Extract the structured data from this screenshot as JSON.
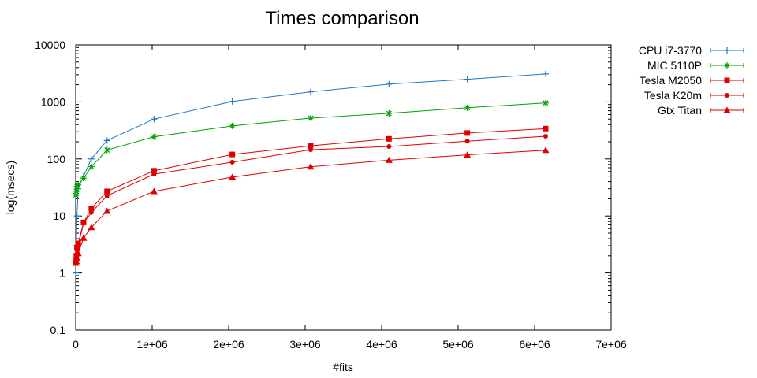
{
  "chart_data": {
    "type": "line",
    "title": "Times comparison",
    "xlabel": "#fits",
    "ylabel": "log(msecs)",
    "xlim": [
      0,
      7000000
    ],
    "ylim": [
      0.1,
      10000
    ],
    "yscale": "log",
    "grid": false,
    "legend_position": "top-right",
    "x_ticks": [
      "0",
      "1e+06",
      "2e+06",
      "3e+06",
      "4e+06",
      "5e+06",
      "6e+06",
      "7e+06"
    ],
    "y_ticks": [
      "0.1",
      "1",
      "10",
      "100",
      "1000",
      "10000"
    ],
    "x": [
      1,
      8192,
      16384,
      32768,
      102400,
      204800,
      409600,
      1024000,
      2048000,
      3072000,
      4096000,
      5120000,
      6144000
    ],
    "series": [
      {
        "name": "CPU i7-3770",
        "color": "#1f77c4",
        "marker": "plus",
        "values": [
          1,
          3,
          10,
          30,
          50,
          100,
          210,
          500,
          1020,
          1500,
          2050,
          2500,
          3100
        ]
      },
      {
        "name": "MIC 5110P",
        "color": "#00a000",
        "marker": "star",
        "values": [
          23,
          27,
          33,
          35,
          46,
          73,
          143,
          245,
          380,
          520,
          630,
          790,
          960
        ]
      },
      {
        "name": "Tesla M2050",
        "color": "#e00000",
        "marker": "square",
        "values": [
          1.5,
          2,
          2.8,
          3.3,
          7.7,
          13.5,
          27,
          62,
          120,
          170,
          225,
          285,
          340
        ]
      },
      {
        "name": "Tesla K20m",
        "color": "#e00000",
        "marker": "dot",
        "values": [
          1.7,
          2.1,
          2.5,
          3,
          7.5,
          11.5,
          22.5,
          54,
          88,
          145,
          165,
          205,
          250
        ]
      },
      {
        "name": "Gtx Titan",
        "color": "#e00000",
        "marker": "triangle",
        "values": [
          1.5,
          1.6,
          1.8,
          2.2,
          4.1,
          6.3,
          12.2,
          27,
          48,
          73,
          95,
          118,
          142
        ]
      }
    ]
  }
}
